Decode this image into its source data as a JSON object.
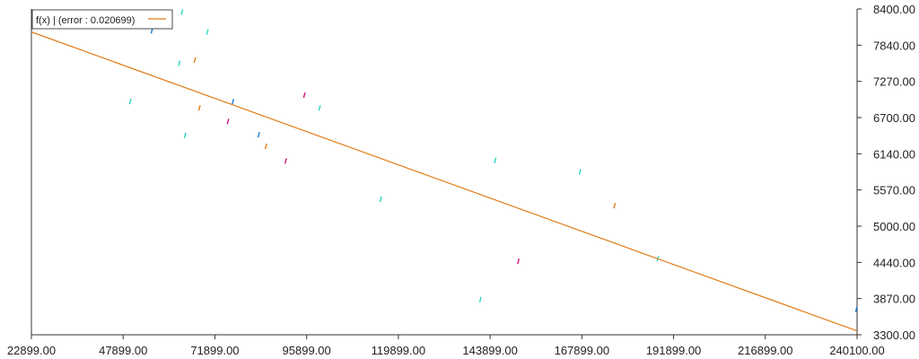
{
  "chart_data": {
    "type": "scatter",
    "legend": {
      "label": "f(x) | (error : 0.020699)",
      "placement": "top-left",
      "color": "#e07b16"
    },
    "x_ticks": [
      "22899.00",
      "47899.00",
      "71899.00",
      "95899.00",
      "119899.00",
      "143899.00",
      "167899.00",
      "191899.00",
      "216899.00",
      "240100.00"
    ],
    "y_ticks": [
      "8400.00",
      "7840.00",
      "7270.00",
      "6700.00",
      "6140.00",
      "5570.00",
      "5000.00",
      "4440.00",
      "3870.00",
      "3300.00"
    ],
    "xlim": [
      22899,
      240100
    ],
    "ylim": [
      3300,
      8400
    ],
    "y_axis_side": "right",
    "grid": false,
    "series": [
      {
        "values": [
          {
            "x": 54600,
            "y": 8060,
            "color": "#1f77d4"
          },
          {
            "x": 62500,
            "y": 8350,
            "color": "#2ad4c0"
          },
          {
            "x": 69200,
            "y": 8040,
            "color": "#2ad4c0"
          },
          {
            "x": 61800,
            "y": 7550,
            "color": "#2ad4c0"
          },
          {
            "x": 65900,
            "y": 7600,
            "color": "#e07b16"
          },
          {
            "x": 48900,
            "y": 6950,
            "color": "#2ad4c0"
          },
          {
            "x": 63300,
            "y": 6420,
            "color": "#2ad4c0"
          },
          {
            "x": 67100,
            "y": 6850,
            "color": "#e07b16"
          },
          {
            "x": 75900,
            "y": 6950,
            "color": "#1f77d4"
          },
          {
            "x": 74600,
            "y": 6640,
            "color": "#d4167b"
          },
          {
            "x": 82700,
            "y": 6430,
            "color": "#1f77d4"
          },
          {
            "x": 84600,
            "y": 6250,
            "color": "#e07b16"
          },
          {
            "x": 89800,
            "y": 6020,
            "color": "#d4167b"
          },
          {
            "x": 94700,
            "y": 7050,
            "color": "#d4167b"
          },
          {
            "x": 98700,
            "y": 6850,
            "color": "#2ad4c0"
          },
          {
            "x": 114800,
            "y": 5420,
            "color": "#2ad4c0"
          },
          {
            "x": 141000,
            "y": 3850,
            "color": "#2ad4c0"
          },
          {
            "x": 144900,
            "y": 6030,
            "color": "#2ad4c0"
          },
          {
            "x": 151000,
            "y": 4450,
            "color": "#d4167b"
          },
          {
            "x": 167200,
            "y": 5850,
            "color": "#2ad4c0"
          },
          {
            "x": 176300,
            "y": 5320,
            "color": "#e07b16"
          },
          {
            "x": 187700,
            "y": 4490,
            "color": "#2ad4c0"
          },
          {
            "x": 239900,
            "y": 3700,
            "color": "#1f77d4"
          }
        ]
      }
    ],
    "fit_line": {
      "color": "#e07b16",
      "points": [
        {
          "x": 22899,
          "y": 8040
        },
        {
          "x": 240100,
          "y": 3360
        }
      ]
    }
  }
}
